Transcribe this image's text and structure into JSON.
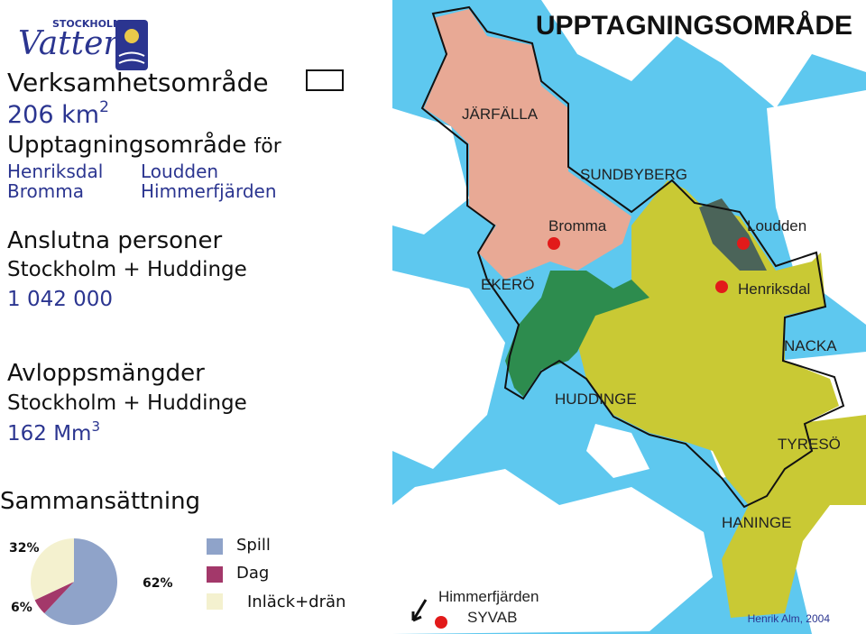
{
  "logo": {
    "top": "STOCKHOLM",
    "word": "Vatten"
  },
  "area": {
    "label": "Verksamhetsområde",
    "value": "206 km",
    "sup": "2"
  },
  "catchment": {
    "label": "Upptagningsområde",
    "suffix": "för",
    "plants": [
      "Henriksdal",
      "Bromma",
      "Loudden",
      "Himmerfjärden"
    ]
  },
  "connected": {
    "label": "Anslutna personer",
    "region": "Stockholm + Huddinge",
    "value": "1 042 000"
  },
  "flow": {
    "label": "Avloppsmängder",
    "region": "Stockholm + Huddinge",
    "value": "162 Mm",
    "sup": "3"
  },
  "chart_data": {
    "type": "pie",
    "title": "Sammansättning",
    "categories": [
      "Spill",
      "Dag",
      "Inläck+drän"
    ],
    "values": [
      62,
      6,
      32
    ],
    "value_labels": [
      "62%",
      "6%",
      "32%"
    ],
    "colors": [
      "#8fa3c9",
      "#a3386a",
      "#f4f1cf"
    ]
  },
  "map": {
    "title": "UPPTAGNINGSOMRÅDE",
    "labels": [
      "JÄRFÄLLA",
      "SUNDBYBERG",
      "Bromma",
      "Loudden",
      "EKERÖ",
      "Henriksdal",
      "NACKA",
      "HUDDINGE",
      "TYRESÖ",
      "HANINGE"
    ],
    "plant": "Himmerfjärden",
    "operator": "SYVAB",
    "credit": "Henrik Alm, 2004"
  }
}
